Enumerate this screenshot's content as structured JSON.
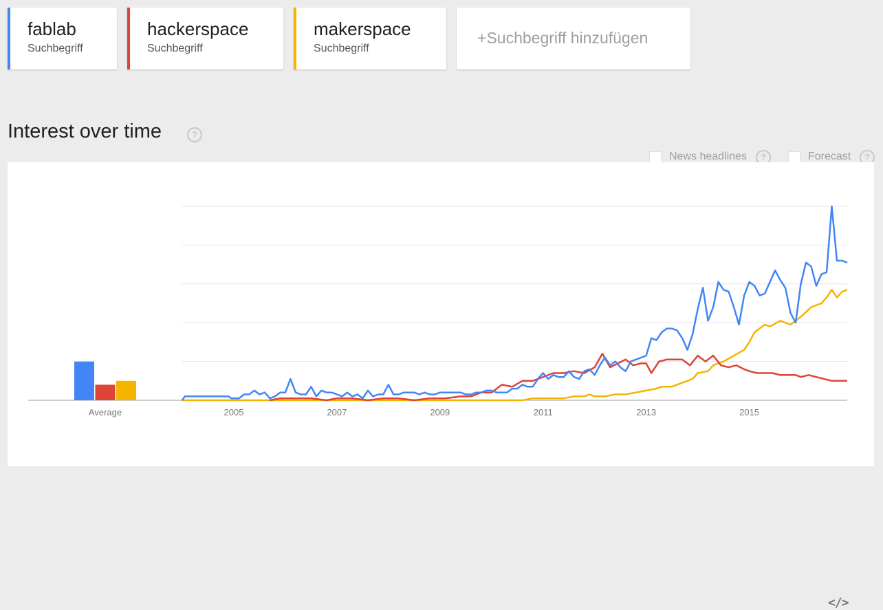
{
  "search_terms": [
    {
      "name": "fablab",
      "type": "Suchbegriff",
      "color": "#4285f4"
    },
    {
      "name": "hackerspace",
      "type": "Suchbegriff",
      "color": "#db4437"
    },
    {
      "name": "makerspace",
      "type": "Suchbegriff",
      "color": "#f4b400"
    }
  ],
  "add_term": {
    "plus": "+",
    "label": "Suchbegriff hinzufügen"
  },
  "section": {
    "title": "Interest over time",
    "help_icon": "?"
  },
  "options": {
    "news_headlines": {
      "label": "News headlines",
      "checked": false
    },
    "forecast": {
      "label": "Forecast",
      "checked": false
    }
  },
  "embed": {
    "label": "</>"
  },
  "chart_data": {
    "type": "line",
    "title": "",
    "xlabel": "",
    "ylabel": "",
    "xlim": [
      2004.0,
      2016.5
    ],
    "ylim": [
      0,
      100
    ],
    "x_ticks": [
      "2005",
      "2007",
      "2009",
      "2011",
      "2013",
      "2015"
    ],
    "x_tick_values": [
      2005,
      2007,
      2009,
      2011,
      2013,
      2015
    ],
    "grid": true,
    "average": {
      "label": "Average",
      "series": [
        {
          "name": "fablab",
          "value": 20,
          "color": "#4285f4"
        },
        {
          "name": "hackerspace",
          "value": 8,
          "color": "#db4437"
        },
        {
          "name": "makerspace",
          "value": 10,
          "color": "#f4b400"
        }
      ]
    },
    "series": [
      {
        "name": "fablab",
        "color": "#4285f4",
        "points": [
          [
            2004.0,
            0
          ],
          [
            2004.05,
            2
          ],
          [
            2004.5,
            2
          ],
          [
            2004.9,
            2
          ],
          [
            2004.95,
            1
          ],
          [
            2005.1,
            1
          ],
          [
            2005.2,
            3
          ],
          [
            2005.3,
            3
          ],
          [
            2005.4,
            5
          ],
          [
            2005.5,
            3
          ],
          [
            2005.6,
            4
          ],
          [
            2005.7,
            1
          ],
          [
            2005.8,
            2
          ],
          [
            2005.9,
            4
          ],
          [
            2006.0,
            4
          ],
          [
            2006.1,
            11
          ],
          [
            2006.2,
            4
          ],
          [
            2006.3,
            3
          ],
          [
            2006.4,
            3
          ],
          [
            2006.5,
            7
          ],
          [
            2006.6,
            2
          ],
          [
            2006.7,
            5
          ],
          [
            2006.8,
            4
          ],
          [
            2006.9,
            4
          ],
          [
            2007.0,
            3
          ],
          [
            2007.1,
            2
          ],
          [
            2007.2,
            4
          ],
          [
            2007.3,
            2
          ],
          [
            2007.4,
            3
          ],
          [
            2007.5,
            1
          ],
          [
            2007.6,
            5
          ],
          [
            2007.7,
            2
          ],
          [
            2007.8,
            3
          ],
          [
            2007.9,
            3
          ],
          [
            2008.0,
            8
          ],
          [
            2008.1,
            3
          ],
          [
            2008.2,
            3
          ],
          [
            2008.3,
            4
          ],
          [
            2008.4,
            4
          ],
          [
            2008.5,
            4
          ],
          [
            2008.6,
            3
          ],
          [
            2008.7,
            4
          ],
          [
            2008.8,
            3
          ],
          [
            2008.9,
            3
          ],
          [
            2009.0,
            4
          ],
          [
            2009.1,
            4
          ],
          [
            2009.2,
            4
          ],
          [
            2009.3,
            4
          ],
          [
            2009.4,
            4
          ],
          [
            2009.5,
            3
          ],
          [
            2009.6,
            3
          ],
          [
            2009.7,
            4
          ],
          [
            2009.8,
            4
          ],
          [
            2009.9,
            5
          ],
          [
            2010.0,
            5
          ],
          [
            2010.1,
            4
          ],
          [
            2010.2,
            4
          ],
          [
            2010.3,
            4
          ],
          [
            2010.4,
            6
          ],
          [
            2010.5,
            6
          ],
          [
            2010.6,
            8
          ],
          [
            2010.7,
            7
          ],
          [
            2010.8,
            7
          ],
          [
            2010.9,
            11
          ],
          [
            2011.0,
            14
          ],
          [
            2011.1,
            11
          ],
          [
            2011.2,
            13
          ],
          [
            2011.3,
            12
          ],
          [
            2011.4,
            12
          ],
          [
            2011.5,
            15
          ],
          [
            2011.6,
            12
          ],
          [
            2011.7,
            11
          ],
          [
            2011.8,
            15
          ],
          [
            2011.9,
            16
          ],
          [
            2012.0,
            13
          ],
          [
            2012.1,
            18
          ],
          [
            2012.2,
            22
          ],
          [
            2012.3,
            18
          ],
          [
            2012.4,
            20
          ],
          [
            2012.5,
            17
          ],
          [
            2012.6,
            15
          ],
          [
            2012.7,
            20
          ],
          [
            2012.8,
            21
          ],
          [
            2012.9,
            22
          ],
          [
            2013.0,
            23
          ],
          [
            2013.1,
            32
          ],
          [
            2013.2,
            31
          ],
          [
            2013.3,
            35
          ],
          [
            2013.4,
            37
          ],
          [
            2013.5,
            37
          ],
          [
            2013.6,
            36
          ],
          [
            2013.7,
            32
          ],
          [
            2013.8,
            26
          ],
          [
            2013.9,
            34
          ],
          [
            2014.0,
            47
          ],
          [
            2014.1,
            58
          ],
          [
            2014.2,
            41
          ],
          [
            2014.3,
            48
          ],
          [
            2014.4,
            61
          ],
          [
            2014.5,
            57
          ],
          [
            2014.6,
            56
          ],
          [
            2014.7,
            48
          ],
          [
            2014.8,
            39
          ],
          [
            2014.9,
            54
          ],
          [
            2015.0,
            61
          ],
          [
            2015.1,
            59
          ],
          [
            2015.2,
            54
          ],
          [
            2015.3,
            55
          ],
          [
            2015.4,
            61
          ],
          [
            2015.5,
            67
          ],
          [
            2015.6,
            62
          ],
          [
            2015.7,
            58
          ],
          [
            2015.8,
            45
          ],
          [
            2015.9,
            40
          ],
          [
            2016.0,
            60
          ],
          [
            2016.1,
            71
          ],
          [
            2016.2,
            69
          ],
          [
            2016.3,
            59
          ],
          [
            2016.4,
            65
          ],
          [
            2016.5,
            66
          ],
          [
            2016.6,
            100
          ],
          [
            2016.7,
            72
          ],
          [
            2016.8,
            72
          ],
          [
            2016.9,
            71
          ]
        ]
      },
      {
        "name": "hackerspace",
        "color": "#db4437",
        "points": [
          [
            2005.7,
            0
          ],
          [
            2005.9,
            1
          ],
          [
            2006.5,
            1
          ],
          [
            2006.8,
            0
          ],
          [
            2007.0,
            1
          ],
          [
            2007.3,
            1
          ],
          [
            2007.6,
            0
          ],
          [
            2007.9,
            1
          ],
          [
            2008.2,
            1
          ],
          [
            2008.5,
            0
          ],
          [
            2008.8,
            1
          ],
          [
            2009.1,
            1
          ],
          [
            2009.4,
            2
          ],
          [
            2009.6,
            2
          ],
          [
            2009.8,
            4
          ],
          [
            2010.0,
            4
          ],
          [
            2010.2,
            8
          ],
          [
            2010.4,
            7
          ],
          [
            2010.6,
            10
          ],
          [
            2010.8,
            10
          ],
          [
            2011.0,
            12
          ],
          [
            2011.2,
            14
          ],
          [
            2011.4,
            14
          ],
          [
            2011.6,
            15
          ],
          [
            2011.8,
            14
          ],
          [
            2012.0,
            17
          ],
          [
            2012.15,
            24
          ],
          [
            2012.3,
            17
          ],
          [
            2012.45,
            19
          ],
          [
            2012.6,
            21
          ],
          [
            2012.75,
            18
          ],
          [
            2012.9,
            19
          ],
          [
            2013.0,
            19
          ],
          [
            2013.1,
            14
          ],
          [
            2013.25,
            20
          ],
          [
            2013.4,
            21
          ],
          [
            2013.55,
            21
          ],
          [
            2013.7,
            21
          ],
          [
            2013.85,
            18
          ],
          [
            2014.0,
            23
          ],
          [
            2014.15,
            20
          ],
          [
            2014.3,
            23
          ],
          [
            2014.45,
            18
          ],
          [
            2014.6,
            17
          ],
          [
            2014.75,
            18
          ],
          [
            2014.9,
            16
          ],
          [
            2015.0,
            15
          ],
          [
            2015.15,
            14
          ],
          [
            2015.3,
            14
          ],
          [
            2015.45,
            14
          ],
          [
            2015.6,
            13
          ],
          [
            2015.75,
            13
          ],
          [
            2015.9,
            13
          ],
          [
            2016.0,
            12
          ],
          [
            2016.15,
            13
          ],
          [
            2016.3,
            12
          ],
          [
            2016.45,
            11
          ],
          [
            2016.6,
            10
          ],
          [
            2016.75,
            10
          ],
          [
            2016.9,
            10
          ]
        ]
      },
      {
        "name": "makerspace",
        "color": "#f4b400",
        "points": [
          [
            2004.0,
            0
          ],
          [
            2010.6,
            0
          ],
          [
            2010.8,
            1
          ],
          [
            2011.4,
            1
          ],
          [
            2011.6,
            2
          ],
          [
            2011.8,
            2
          ],
          [
            2011.9,
            3
          ],
          [
            2012.0,
            2
          ],
          [
            2012.2,
            2
          ],
          [
            2012.4,
            3
          ],
          [
            2012.6,
            3
          ],
          [
            2012.8,
            4
          ],
          [
            2013.0,
            5
          ],
          [
            2013.2,
            6
          ],
          [
            2013.3,
            7
          ],
          [
            2013.5,
            7
          ],
          [
            2013.7,
            9
          ],
          [
            2013.9,
            11
          ],
          [
            2014.0,
            14
          ],
          [
            2014.2,
            15
          ],
          [
            2014.3,
            18
          ],
          [
            2014.5,
            20
          ],
          [
            2014.7,
            23
          ],
          [
            2014.9,
            26
          ],
          [
            2015.0,
            30
          ],
          [
            2015.1,
            35
          ],
          [
            2015.3,
            39
          ],
          [
            2015.4,
            38
          ],
          [
            2015.6,
            41
          ],
          [
            2015.8,
            39
          ],
          [
            2016.0,
            43
          ],
          [
            2016.2,
            48
          ],
          [
            2016.4,
            50
          ],
          [
            2016.5,
            53
          ],
          [
            2016.6,
            57
          ],
          [
            2016.7,
            53
          ],
          [
            2016.8,
            56
          ],
          [
            2016.9,
            57
          ]
        ]
      }
    ]
  }
}
